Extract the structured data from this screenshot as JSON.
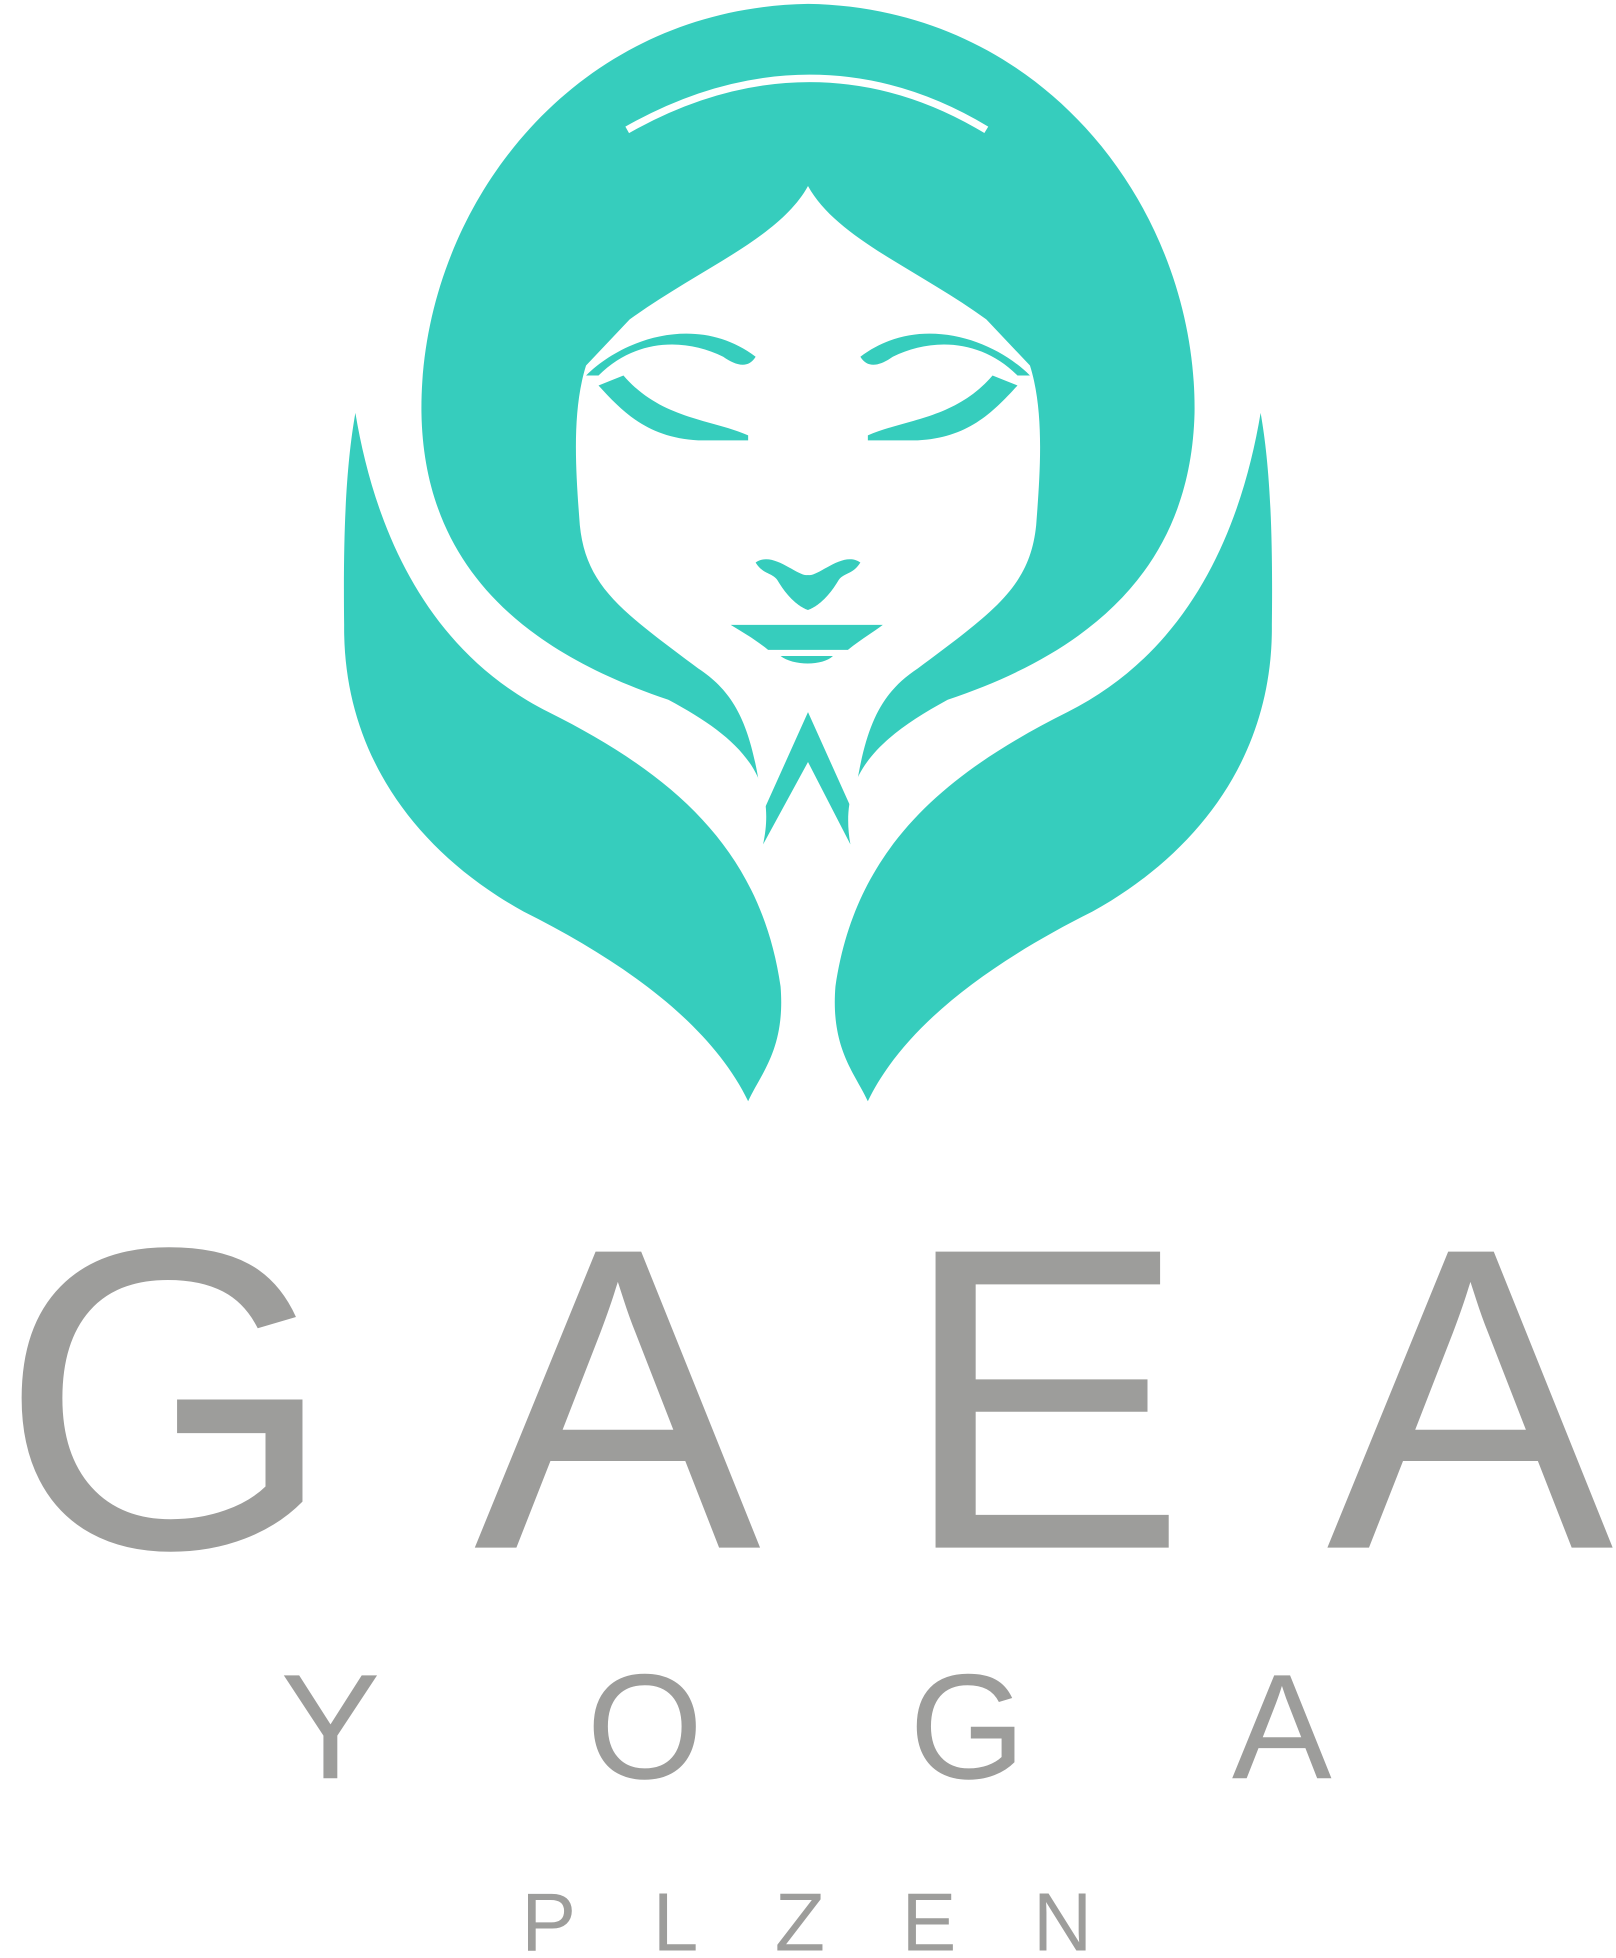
{
  "logo": {
    "name": "GAEA",
    "subtitle": "YOGA",
    "city": "PLZEN"
  }
}
